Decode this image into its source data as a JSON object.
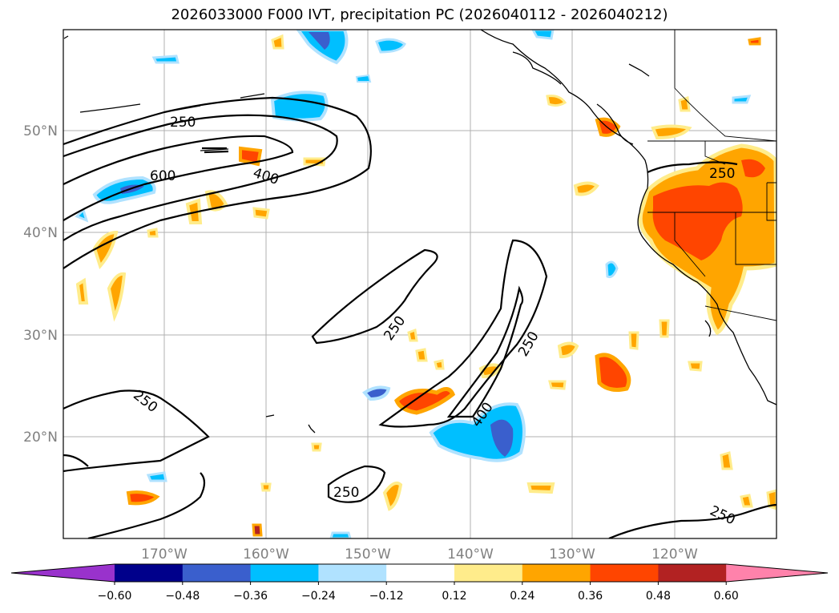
{
  "title": "2026033000 F000 IVT, precipitation PC (2026040112 - 2026040212)",
  "axes": {
    "lon_labels": [
      "170°W",
      "160°W",
      "150°W",
      "140°W",
      "130°W",
      "120°W"
    ],
    "lat_labels": [
      "50°N",
      "40°N",
      "30°N",
      "20°N"
    ]
  },
  "colorbar": {
    "tick_labels": [
      "−0.60",
      "−0.48",
      "−0.36",
      "−0.24",
      "−0.12",
      "0.12",
      "0.24",
      "0.36",
      "0.48",
      "0.60"
    ],
    "colors": [
      "#9932cc",
      "#00008b",
      "#3a5fcd",
      "#00bfff",
      "#b0e2ff",
      "#ffffff",
      "#ffec8b",
      "#ffa500",
      "#ff4500",
      "#b22222",
      "#ff82ab"
    ]
  },
  "ivt_contour_labels": {
    "a": "250",
    "b": "600",
    "c": "400",
    "d": "250",
    "e": "250",
    "f": "250",
    "g": "400",
    "h": "250",
    "i": "250",
    "j": "250"
  }
}
